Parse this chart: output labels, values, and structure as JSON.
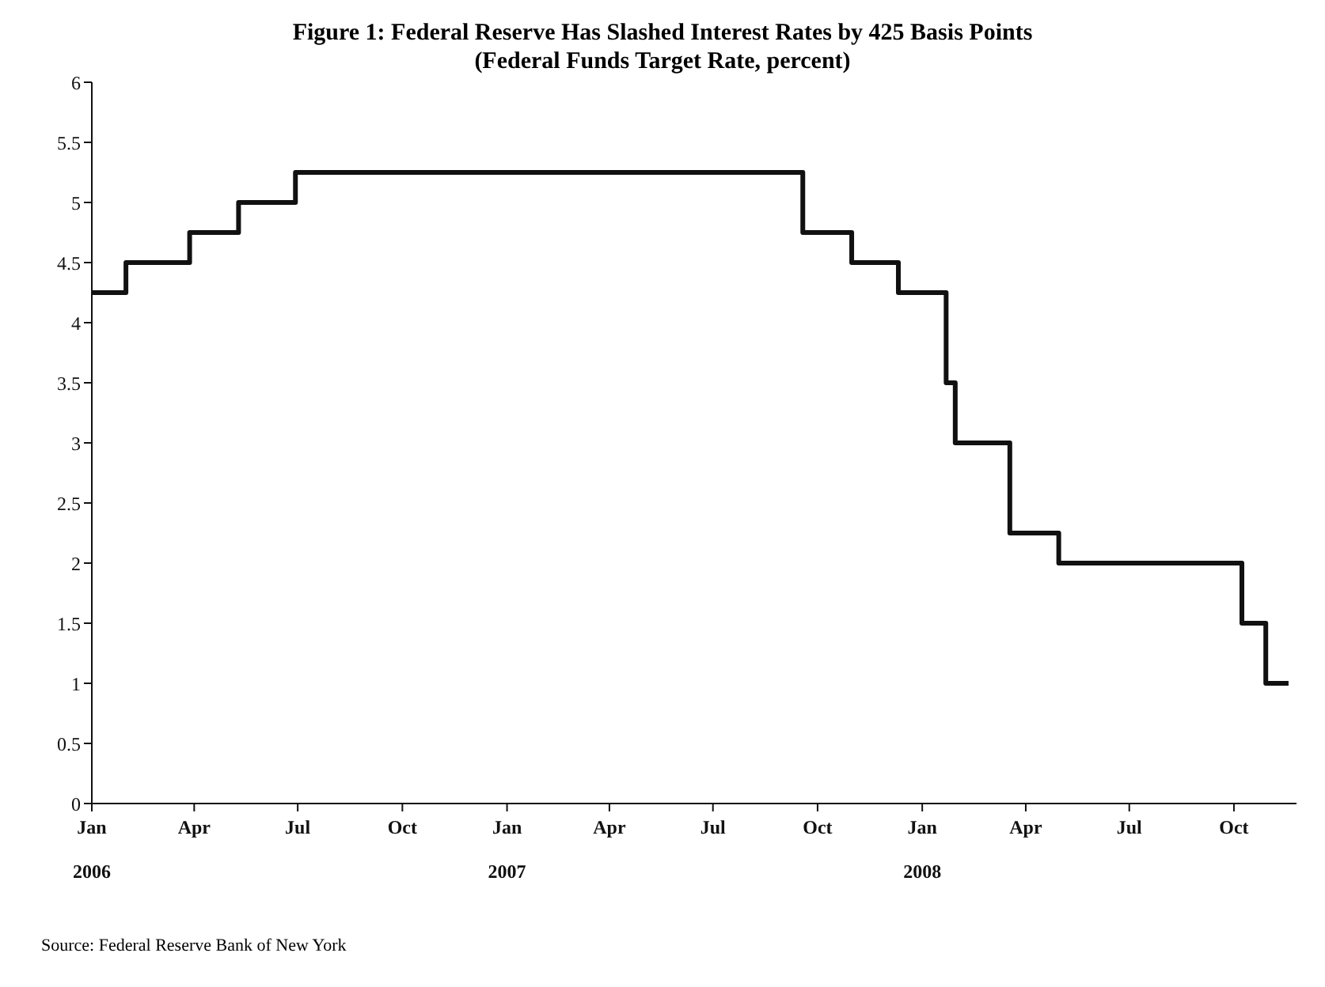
{
  "chart_data": {
    "type": "step",
    "title": "Figure 1: Federal Reserve Has Slashed Interest Rates by 425 Basis Points",
    "subtitle": "(Federal Funds Target Rate, percent)",
    "x": [
      "2006-01-01",
      "2006-01-31",
      "2006-03-28",
      "2006-05-10",
      "2006-06-29",
      "2007-09-18",
      "2007-10-31",
      "2007-12-11",
      "2008-01-22",
      "2008-01-30",
      "2008-03-18",
      "2008-04-30",
      "2008-10-08",
      "2008-10-29",
      "2008-11-18"
    ],
    "series": [
      {
        "color": "#111111",
        "values": [
          4.25,
          4.5,
          4.75,
          5,
          5.25,
          4.75,
          4.5,
          4.25,
          3.5,
          3,
          2.25,
          2,
          1.5,
          1,
          1
        ]
      }
    ],
    "xlim": [
      "2006-01-01",
      "2008-11-25"
    ],
    "xticks": [
      {
        "value": "2006-01-01",
        "label": "Jan\n2006"
      },
      {
        "value": "2006-04-01",
        "label": "Apr"
      },
      {
        "value": "2006-07-01",
        "label": "Jul"
      },
      {
        "value": "2006-10-01",
        "label": "Oct"
      },
      {
        "value": "2007-01-01",
        "label": "Jan\n2007"
      },
      {
        "value": "2007-04-01",
        "label": "Apr"
      },
      {
        "value": "2007-07-01",
        "label": "Jul"
      },
      {
        "value": "2007-10-01",
        "label": "Oct"
      },
      {
        "value": "2008-01-01",
        "label": "Jan\n2008"
      },
      {
        "value": "2008-04-01",
        "label": "Apr"
      },
      {
        "value": "2008-07-01",
        "label": "Jul"
      },
      {
        "value": "2008-10-01",
        "label": "Oct"
      }
    ],
    "ylim": [
      0,
      6
    ],
    "yticks": [
      0,
      0.5,
      1,
      1.5,
      2,
      2.5,
      3,
      3.5,
      4,
      4.5,
      5,
      5.5,
      6
    ],
    "grid": false,
    "legend": false,
    "marker": "none",
    "line_style": "solid",
    "annotations": [
      "Source: Federal Reserve Bank of New York"
    ]
  }
}
